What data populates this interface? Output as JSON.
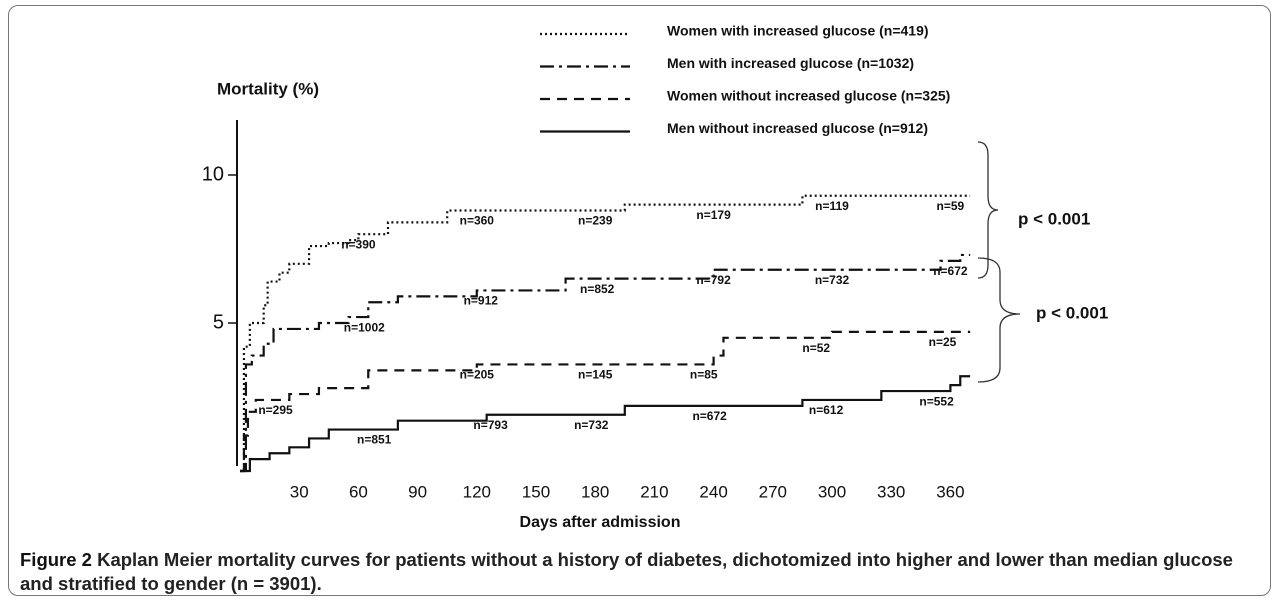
{
  "chart_data": {
    "type": "step",
    "y_label": "Mortality (%)",
    "x_label": "Days after admission",
    "xlim": [
      0,
      370
    ],
    "xticks": [
      30,
      60,
      90,
      120,
      150,
      180,
      210,
      240,
      270,
      300,
      330,
      360
    ],
    "ylim": [
      0,
      12
    ],
    "yticks": [
      5,
      10
    ],
    "legend": "top",
    "series": [
      {
        "name": "Women with increased glucose (n=419)",
        "color": "#111",
        "line_style": "dotted",
        "x": [
          0,
          2,
          5,
          12,
          14,
          20,
          25,
          35,
          45,
          55,
          60,
          75,
          105,
          195,
          285,
          365
        ],
        "values": [
          0,
          4.2,
          5.0,
          5.6,
          6.4,
          6.7,
          7.0,
          7.6,
          7.7,
          7.8,
          8.0,
          8.4,
          8.8,
          9.0,
          9.3,
          9.3
        ],
        "at_risk": [
          "n=390",
          "n=360",
          "n=239",
          "n=179",
          "n=119",
          "n=59"
        ],
        "at_risk_days": [
          60,
          120,
          180,
          240,
          300,
          360
        ]
      },
      {
        "name": "Men with increased glucose (n=1032)",
        "color": "#111",
        "line_style": "dashdot",
        "x": [
          0,
          3,
          6,
          12,
          17,
          40,
          55,
          65,
          80,
          120,
          165,
          240,
          355,
          365
        ],
        "values": [
          0,
          3.6,
          3.9,
          4.3,
          4.8,
          5.0,
          5.2,
          5.7,
          5.9,
          6.1,
          6.5,
          6.8,
          7.1,
          7.3
        ],
        "at_risk": [
          "n=1002",
          "n=912",
          "n=852",
          "n=792",
          "n=732",
          "n=672"
        ],
        "at_risk_days": [
          63,
          122,
          181,
          240,
          300,
          360
        ]
      },
      {
        "name": "Women without increased glucose (n=325)",
        "color": "#111",
        "line_style": "dashed",
        "x": [
          0,
          2,
          4,
          8,
          25,
          40,
          65,
          120,
          240,
          245,
          300,
          365
        ],
        "values": [
          0,
          1.2,
          2.0,
          2.4,
          2.6,
          2.8,
          3.4,
          3.6,
          3.9,
          4.5,
          4.7,
          4.7
        ],
        "at_risk": [
          "n=295",
          "n=205",
          "n=145",
          "n=85",
          "n=52",
          "n=25"
        ],
        "at_risk_days": [
          18,
          120,
          180,
          235,
          292,
          356
        ]
      },
      {
        "name": "Men without increased glucose (n=912)",
        "color": "#111",
        "line_style": "solid",
        "x": [
          0,
          5,
          15,
          25,
          35,
          45,
          80,
          125,
          195,
          285,
          325,
          360,
          365
        ],
        "values": [
          0,
          0.4,
          0.6,
          0.8,
          1.1,
          1.4,
          1.7,
          1.9,
          2.2,
          2.4,
          2.7,
          2.9,
          3.2
        ],
        "at_risk": [
          "n=851",
          "n=793",
          "n=732",
          "n=672",
          "n=612",
          "n=552"
        ],
        "at_risk_days": [
          68,
          127,
          178,
          238,
          297,
          353
        ]
      }
    ],
    "annotations": [
      "p < 0.001",
      "p < 0.001"
    ]
  },
  "caption": {
    "label": "Figure 2",
    "text": "Kaplan Meier mortality curves for patients without a history of diabetes, dichotomized into higher and lower than median glucose and stratified to gender (n = 3901)."
  }
}
